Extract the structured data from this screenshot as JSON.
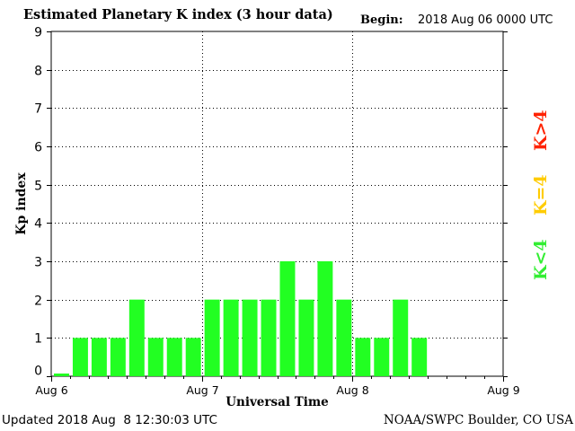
{
  "header": {
    "title": "Estimated Planetary K index (3 hour data)",
    "begin_label": "Begin:",
    "begin_value": "2018 Aug 06 0000 UTC"
  },
  "footer": {
    "updated": "Updated 2018 Aug  8 12:30:03 UTC",
    "credit": "NOAA/SWPC Boulder, CO USA"
  },
  "legend": {
    "items": [
      {
        "label": "K<4",
        "color": "#33ee33"
      },
      {
        "label": "K=4",
        "color": "#ffcc00"
      },
      {
        "label": "K>4",
        "color": "#ff2200"
      }
    ]
  },
  "chart_data": {
    "type": "bar",
    "title": "Estimated Planetary K index (3 hour data)",
    "xlabel": "Universal Time",
    "ylabel": "Kp index",
    "ylim": [
      0,
      9
    ],
    "yticks": [
      "0",
      "1",
      "2",
      "3",
      "4",
      "5",
      "6",
      "7",
      "8",
      "9"
    ],
    "xtick_labels": [
      "Aug 6",
      "Aug 7",
      "Aug 8",
      "Aug 9"
    ],
    "interval_hours": 3,
    "values": [
      0,
      1,
      1,
      1,
      2,
      1,
      1,
      1,
      2,
      2,
      2,
      2,
      3,
      2,
      3,
      2,
      1,
      1,
      2,
      1
    ],
    "bar_color": "#22ff22",
    "grid": true
  }
}
